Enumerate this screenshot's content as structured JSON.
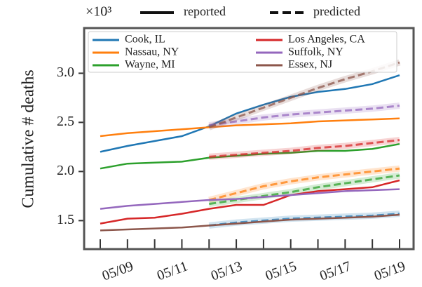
{
  "chart_data": {
    "type": "line",
    "y_label": "Cumulative # deaths",
    "y_multiplier": "×10³",
    "style_legend": [
      "reported",
      "predicted"
    ],
    "categories": [
      null,
      "05/09",
      null,
      "05/11",
      null,
      "05/13",
      null,
      "05/15",
      null,
      "05/17",
      null,
      "05/19"
    ],
    "ylim": [
      1.21,
      3.46
    ],
    "yticks": [
      1.5,
      {
        "value": 2.0,
        "label": "2.0"
      },
      2.5,
      {
        "value": 3.0,
        "label": "3.0"
      }
    ],
    "series": [
      {
        "name": "Cook, IL",
        "color": "#1f77b4",
        "values": [
          2.2,
          2.26,
          2.31,
          2.36,
          2.46,
          2.59,
          2.68,
          2.76,
          2.81,
          2.84,
          2.89,
          2.98
        ],
        "predicted": [
          null,
          null,
          null,
          null,
          1.45,
          1.48,
          1.5,
          1.52,
          1.53,
          1.54,
          1.55,
          1.57
        ]
      },
      {
        "name": "Nassau, NY",
        "color": "#ff7f0e",
        "values": [
          2.36,
          2.39,
          2.41,
          2.43,
          2.45,
          2.47,
          2.48,
          2.49,
          2.51,
          2.52,
          2.53,
          2.54
        ],
        "predicted": [
          null,
          null,
          null,
          null,
          1.71,
          1.78,
          1.85,
          1.9,
          1.94,
          1.97,
          2.0,
          2.03
        ]
      },
      {
        "name": "Wayne, MI",
        "color": "#2ca02c",
        "values": [
          2.03,
          2.08,
          2.09,
          2.1,
          2.14,
          2.16,
          2.18,
          2.19,
          2.21,
          2.21,
          2.23,
          2.28
        ],
        "predicted": [
          null,
          null,
          null,
          null,
          1.67,
          1.71,
          1.75,
          1.79,
          1.84,
          1.88,
          1.92,
          1.96
        ]
      },
      {
        "name": "Los Angeles, CA",
        "color": "#d62728",
        "values": [
          1.47,
          1.52,
          1.53,
          1.57,
          1.62,
          1.66,
          1.66,
          1.76,
          1.8,
          1.82,
          1.84,
          1.91
        ],
        "predicted": [
          null,
          null,
          null,
          null,
          2.15,
          2.17,
          2.19,
          2.21,
          2.24,
          2.26,
          2.29,
          2.32
        ]
      },
      {
        "name": "Suffolk, NY",
        "color": "#9467bd",
        "values": [
          1.62,
          1.65,
          1.67,
          1.69,
          1.71,
          1.72,
          1.74,
          1.76,
          1.78,
          1.8,
          1.81,
          1.82
        ],
        "predicted": [
          null,
          null,
          null,
          null,
          2.47,
          2.51,
          2.55,
          2.58,
          2.6,
          2.62,
          2.64,
          2.67
        ]
      },
      {
        "name": "Essex, NJ",
        "color": "#8c564b",
        "values": [
          1.4,
          1.41,
          1.42,
          1.43,
          1.45,
          1.47,
          1.49,
          1.51,
          1.52,
          1.53,
          1.54,
          1.56
        ],
        "predicted": [
          null,
          null,
          null,
          null,
          2.45,
          2.55,
          2.65,
          2.75,
          2.85,
          2.94,
          3.02,
          3.11
        ]
      }
    ]
  }
}
